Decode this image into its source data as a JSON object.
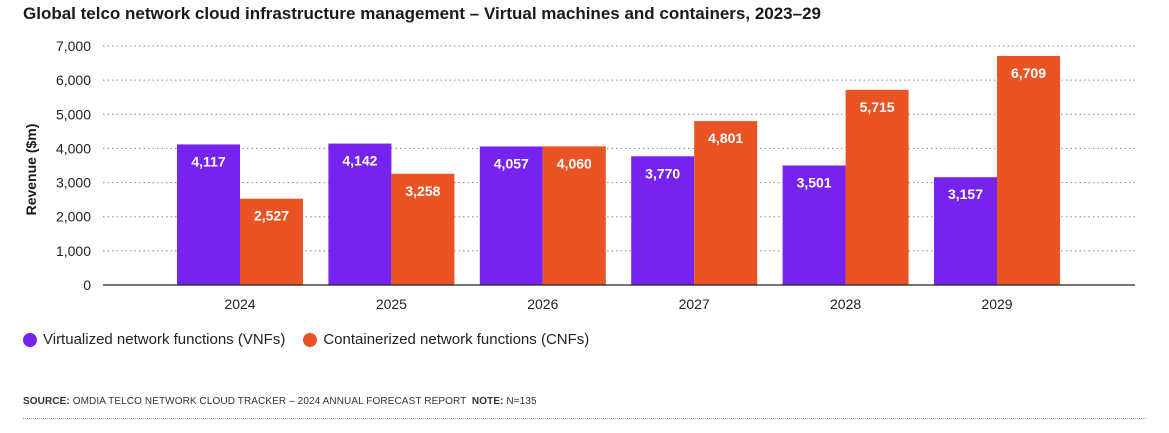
{
  "title": "Global telco network cloud infrastructure management – Virtual machines and containers, 2023–29",
  "chart_data": {
    "type": "bar",
    "title": "Global telco network cloud infrastructure management – Virtual machines and containers, 2023–29",
    "xlabel": "",
    "ylabel": "Revenue ($m)",
    "ylim": [
      0,
      7000
    ],
    "yticks": [
      0,
      1000,
      2000,
      3000,
      4000,
      5000,
      6000,
      7000
    ],
    "ytick_labels": [
      "0",
      "1,000",
      "2,000",
      "3,000",
      "4,000",
      "5,000",
      "6,000",
      "7,000"
    ],
    "grid": true,
    "legend_position": "bottom-left",
    "categories": [
      "2024",
      "2025",
      "2026",
      "2027",
      "2028",
      "2029"
    ],
    "series": [
      {
        "name": "Virtualized network functions (VNFs)",
        "color": "#7723f0",
        "values": [
          4117,
          4142,
          4057,
          3770,
          3501,
          3157
        ],
        "labels": [
          "4,117",
          "4,142",
          "4,057",
          "3,770",
          "3,501",
          "3,157"
        ]
      },
      {
        "name": "Containerized network functions (CNFs)",
        "color": "#ea5424",
        "values": [
          2527,
          3258,
          4060,
          4801,
          5715,
          6709
        ],
        "labels": [
          "2,527",
          "3,258",
          "4,060",
          "4,801",
          "5,715",
          "6,709"
        ]
      }
    ]
  },
  "legend": {
    "vnf_label": "Virtualized network functions (VNFs)",
    "cnf_label": "Containerized network functions (CNFs)"
  },
  "footer": {
    "source_label": "SOURCE:",
    "source_text": "OMDIA TELCO NETWORK CLOUD TRACKER – 2024 ANNUAL FORECAST REPORT",
    "note_label": "NOTE:",
    "note_text": "N=135"
  }
}
